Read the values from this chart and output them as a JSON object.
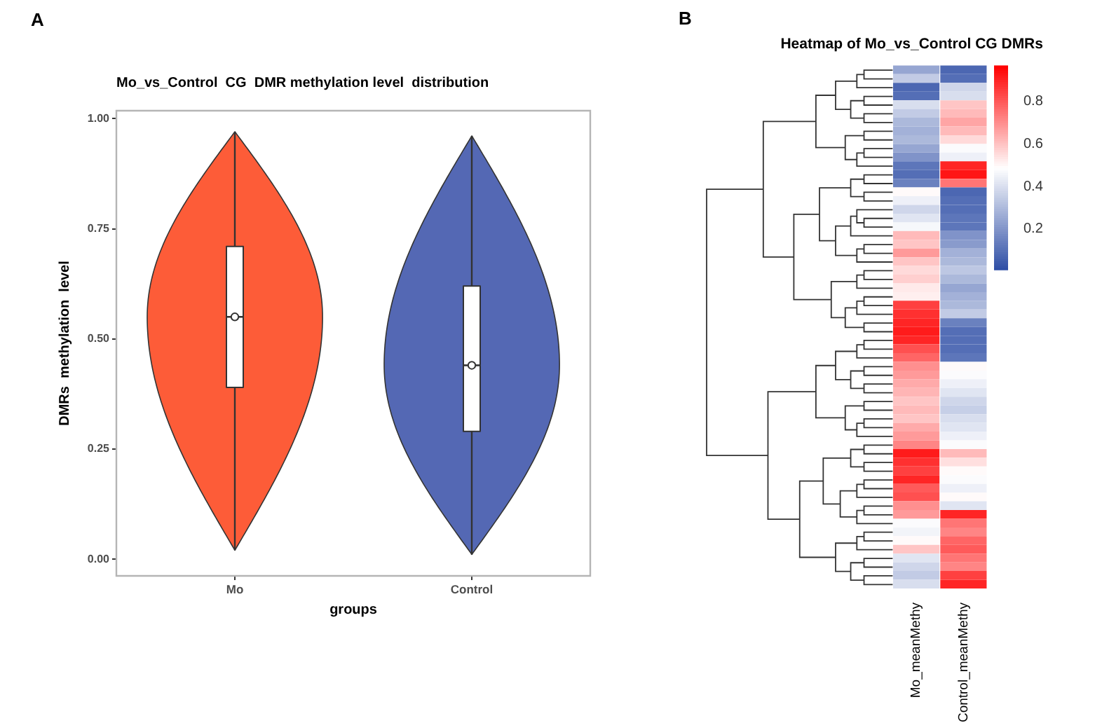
{
  "chart_data": [
    {
      "type": "box",
      "title": "Mo_vs_Control  CG  DMR methylation level  distribution",
      "xlabel": "groups",
      "ylabel": "DMRs  methylation  level",
      "categories": [
        "Mo",
        "Control"
      ],
      "colors": [
        "#ffffff",
        "#ffffff"
      ],
      "boxes": [
        {
          "low": 0.02,
          "q1": 0.39,
          "median": 0.55,
          "q3": 0.71,
          "high": 0.97,
          "mean": 0.55
        },
        {
          "low": 0.01,
          "q1": 0.29,
          "median": 0.44,
          "q3": 0.62,
          "high": 0.96,
          "mean": 0.44
        }
      ],
      "ylim": [
        -0.038,
        1.018
      ],
      "yticks": [
        {
          "value": 0,
          "label": "0.00"
        },
        {
          "value": 0.25,
          "label": "0.25"
        },
        {
          "value": 0.5,
          "label": "0.50"
        },
        {
          "value": 0.75,
          "label": "0.75"
        },
        {
          "value": 1,
          "label": "1.00"
        }
      ],
      "annotations": [
        "A"
      ]
    },
    {
      "type": "heatmap",
      "title": "Heatmap of Mo_vs_Control CG DMRs",
      "categories": [
        "Mo_meanMethy",
        "Control_meanMethy"
      ],
      "y_categories": [
        null,
        null,
        null,
        null,
        null,
        null,
        null,
        null,
        null,
        null,
        null,
        null,
        null,
        null,
        null,
        null,
        null,
        null,
        null,
        null,
        null,
        null,
        null,
        null,
        null,
        null,
        null,
        null,
        null,
        null,
        null,
        null,
        null,
        null,
        null,
        null,
        null,
        null,
        null,
        null,
        null,
        null,
        null,
        null,
        null,
        null,
        null,
        null,
        null,
        null,
        null,
        null,
        null,
        null,
        null,
        null,
        null,
        null,
        null,
        null
      ],
      "cells": [
        [
          0.25,
          0.08
        ],
        [
          0.35,
          0.1
        ],
        [
          0.08,
          0.38
        ],
        [
          0.1,
          0.4
        ],
        [
          0.4,
          0.6
        ],
        [
          0.35,
          0.62
        ],
        [
          0.3,
          0.66
        ],
        [
          0.28,
          0.62
        ],
        [
          0.3,
          0.56
        ],
        [
          0.25,
          0.48
        ],
        [
          0.2,
          0.45
        ],
        [
          0.12,
          0.9
        ],
        [
          0.1,
          0.93
        ],
        [
          0.15,
          0.75
        ],
        [
          0.5,
          0.08
        ],
        [
          0.45,
          0.1
        ],
        [
          0.38,
          0.1
        ],
        [
          0.42,
          0.12
        ],
        [
          0.47,
          0.12
        ],
        [
          0.62,
          0.2
        ],
        [
          0.6,
          0.22
        ],
        [
          0.68,
          0.28
        ],
        [
          0.6,
          0.3
        ],
        [
          0.56,
          0.34
        ],
        [
          0.58,
          0.3
        ],
        [
          0.53,
          0.25
        ],
        [
          0.52,
          0.28
        ],
        [
          0.85,
          0.3
        ],
        [
          0.88,
          0.35
        ],
        [
          0.9,
          0.15
        ],
        [
          0.92,
          0.1
        ],
        [
          0.9,
          0.1
        ],
        [
          0.82,
          0.1
        ],
        [
          0.78,
          0.12
        ],
        [
          0.7,
          0.5
        ],
        [
          0.68,
          0.48
        ],
        [
          0.65,
          0.45
        ],
        [
          0.63,
          0.42
        ],
        [
          0.6,
          0.38
        ],
        [
          0.62,
          0.36
        ],
        [
          0.6,
          0.4
        ],
        [
          0.65,
          0.42
        ],
        [
          0.68,
          0.45
        ],
        [
          0.72,
          0.48
        ],
        [
          0.92,
          0.62
        ],
        [
          0.88,
          0.55
        ],
        [
          0.85,
          0.5
        ],
        [
          0.9,
          0.48
        ],
        [
          0.8,
          0.45
        ],
        [
          0.82,
          0.5
        ],
        [
          0.7,
          0.42
        ],
        [
          0.68,
          0.9
        ],
        [
          0.48,
          0.75
        ],
        [
          0.46,
          0.72
        ],
        [
          0.5,
          0.78
        ],
        [
          0.6,
          0.8
        ],
        [
          0.42,
          0.75
        ],
        [
          0.38,
          0.72
        ],
        [
          0.35,
          0.85
        ],
        [
          0.4,
          0.9
        ]
      ],
      "clim": [
        0.01,
        0.97
      ],
      "cticks": [
        0.2,
        0.4,
        0.6,
        0.8
      ],
      "annotations": [
        "B"
      ]
    }
  ]
}
